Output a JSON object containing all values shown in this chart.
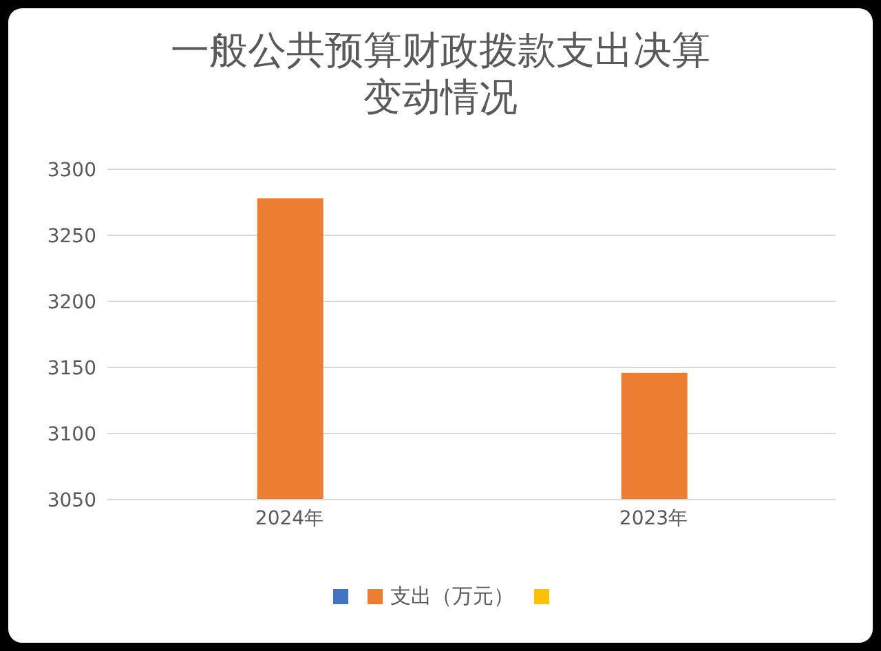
{
  "chart_data": {
    "type": "bar",
    "title": "一般公共预算财政拨款支出决算变动情况",
    "categories": [
      "2024年",
      "2023年"
    ],
    "series": [
      {
        "color": "#4472c4",
        "values": [
          null,
          null
        ]
      },
      {
        "name": "支出（万元）",
        "color": "#ed7d31",
        "values": [
          3278,
          3146
        ]
      },
      {
        "color": "#ffc000",
        "values": [
          null,
          null
        ]
      }
    ],
    "ylim": [
      3050,
      3300
    ],
    "yticks": [
      3050,
      3100,
      3150,
      3200,
      3250,
      3300
    ],
    "grid": "y",
    "legend": "bottom"
  }
}
